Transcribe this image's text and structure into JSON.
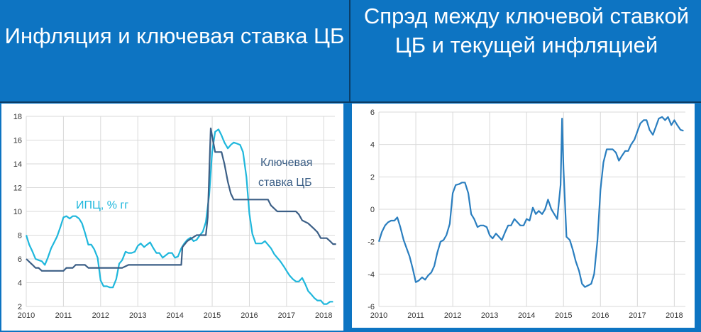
{
  "titles": {
    "left": "Инфляция и ключевая ставка ЦБ",
    "right": "Спрэд между ключевой ставкой ЦБ и текущей инфляцией"
  },
  "colors": {
    "background": "#0d74c2",
    "cpi": "#1fb7dc",
    "key_rate": "#3c5f86",
    "spread": "#2a7ebf"
  },
  "chart_data": [
    {
      "type": "line",
      "title": "Инфляция и ключевая ставка ЦБ",
      "xlim": [
        2010,
        2018.3
      ],
      "ylim": [
        2,
        18
      ],
      "x_ticks": [
        2010,
        2011,
        2012,
        2013,
        2014,
        2015,
        2016,
        2017,
        2018
      ],
      "y_ticks": [
        2,
        4,
        6,
        8,
        10,
        12,
        14,
        16,
        18
      ],
      "grid": true,
      "series": [
        {
          "name": "ИПЦ, % гг",
          "color": "#1fb7dc",
          "points": [
            [
              2010.0,
              8.0
            ],
            [
              2010.08,
              7.2
            ],
            [
              2010.17,
              6.6
            ],
            [
              2010.25,
              6.0
            ],
            [
              2010.33,
              5.9
            ],
            [
              2010.42,
              5.8
            ],
            [
              2010.5,
              5.5
            ],
            [
              2010.58,
              6.1
            ],
            [
              2010.67,
              6.9
            ],
            [
              2010.75,
              7.4
            ],
            [
              2010.83,
              7.9
            ],
            [
              2010.92,
              8.7
            ],
            [
              2011.0,
              9.5
            ],
            [
              2011.08,
              9.6
            ],
            [
              2011.17,
              9.4
            ],
            [
              2011.25,
              9.6
            ],
            [
              2011.33,
              9.6
            ],
            [
              2011.42,
              9.4
            ],
            [
              2011.5,
              9.0
            ],
            [
              2011.58,
              8.2
            ],
            [
              2011.67,
              7.2
            ],
            [
              2011.75,
              7.2
            ],
            [
              2011.83,
              6.8
            ],
            [
              2011.92,
              6.1
            ],
            [
              2012.0,
              4.2
            ],
            [
              2012.08,
              3.7
            ],
            [
              2012.17,
              3.7
            ],
            [
              2012.25,
              3.6
            ],
            [
              2012.33,
              3.6
            ],
            [
              2012.42,
              4.3
            ],
            [
              2012.5,
              5.6
            ],
            [
              2012.58,
              5.9
            ],
            [
              2012.67,
              6.6
            ],
            [
              2012.75,
              6.5
            ],
            [
              2012.83,
              6.5
            ],
            [
              2012.92,
              6.6
            ],
            [
              2013.0,
              7.1
            ],
            [
              2013.08,
              7.3
            ],
            [
              2013.17,
              7.0
            ],
            [
              2013.25,
              7.2
            ],
            [
              2013.33,
              7.4
            ],
            [
              2013.42,
              6.9
            ],
            [
              2013.5,
              6.5
            ],
            [
              2013.58,
              6.5
            ],
            [
              2013.67,
              6.1
            ],
            [
              2013.75,
              6.3
            ],
            [
              2013.83,
              6.5
            ],
            [
              2013.92,
              6.5
            ],
            [
              2014.0,
              6.1
            ],
            [
              2014.08,
              6.2
            ],
            [
              2014.17,
              6.9
            ],
            [
              2014.25,
              7.3
            ],
            [
              2014.33,
              7.6
            ],
            [
              2014.42,
              7.8
            ],
            [
              2014.5,
              7.5
            ],
            [
              2014.58,
              7.6
            ],
            [
              2014.67,
              8.0
            ],
            [
              2014.75,
              8.3
            ],
            [
              2014.83,
              9.1
            ],
            [
              2014.92,
              11.4
            ],
            [
              2015.0,
              15.0
            ],
            [
              2015.08,
              16.7
            ],
            [
              2015.17,
              16.9
            ],
            [
              2015.25,
              16.4
            ],
            [
              2015.33,
              15.8
            ],
            [
              2015.42,
              15.3
            ],
            [
              2015.5,
              15.6
            ],
            [
              2015.58,
              15.8
            ],
            [
              2015.67,
              15.7
            ],
            [
              2015.75,
              15.6
            ],
            [
              2015.83,
              15.0
            ],
            [
              2015.92,
              12.9
            ],
            [
              2016.0,
              9.8
            ],
            [
              2016.08,
              8.1
            ],
            [
              2016.17,
              7.3
            ],
            [
              2016.25,
              7.3
            ],
            [
              2016.33,
              7.3
            ],
            [
              2016.42,
              7.5
            ],
            [
              2016.5,
              7.2
            ],
            [
              2016.58,
              6.9
            ],
            [
              2016.67,
              6.4
            ],
            [
              2016.75,
              6.1
            ],
            [
              2016.83,
              5.8
            ],
            [
              2016.92,
              5.4
            ],
            [
              2017.0,
              5.0
            ],
            [
              2017.08,
              4.6
            ],
            [
              2017.17,
              4.3
            ],
            [
              2017.25,
              4.1
            ],
            [
              2017.33,
              4.1
            ],
            [
              2017.42,
              4.4
            ],
            [
              2017.5,
              3.9
            ],
            [
              2017.58,
              3.3
            ],
            [
              2017.67,
              3.0
            ],
            [
              2017.75,
              2.7
            ],
            [
              2017.83,
              2.5
            ],
            [
              2017.92,
              2.5
            ],
            [
              2018.0,
              2.2
            ],
            [
              2018.08,
              2.2
            ],
            [
              2018.17,
              2.4
            ],
            [
              2018.25,
              2.4
            ]
          ]
        },
        {
          "name": "Ключевая ставка ЦБ",
          "color": "#3c5f86",
          "points": [
            [
              2010.0,
              6.0
            ],
            [
              2010.17,
              5.5
            ],
            [
              2010.25,
              5.25
            ],
            [
              2010.33,
              5.25
            ],
            [
              2010.42,
              5.0
            ],
            [
              2011.0,
              5.0
            ],
            [
              2011.08,
              5.25
            ],
            [
              2011.25,
              5.25
            ],
            [
              2011.33,
              5.5
            ],
            [
              2011.58,
              5.5
            ],
            [
              2011.67,
              5.25
            ],
            [
              2012.0,
              5.25
            ],
            [
              2012.58,
              5.25
            ],
            [
              2012.75,
              5.5
            ],
            [
              2014.17,
              5.5
            ],
            [
              2014.2,
              7.0
            ],
            [
              2014.33,
              7.5
            ],
            [
              2014.58,
              8.0
            ],
            [
              2014.83,
              8.0
            ],
            [
              2014.88,
              9.5
            ],
            [
              2014.96,
              17.0
            ],
            [
              2015.08,
              15.0
            ],
            [
              2015.25,
              15.0
            ],
            [
              2015.33,
              14.0
            ],
            [
              2015.42,
              12.5
            ],
            [
              2015.5,
              11.5
            ],
            [
              2015.58,
              11.0
            ],
            [
              2016.5,
              11.0
            ],
            [
              2016.58,
              10.5
            ],
            [
              2016.75,
              10.0
            ],
            [
              2017.25,
              10.0
            ],
            [
              2017.33,
              9.75
            ],
            [
              2017.42,
              9.25
            ],
            [
              2017.58,
              9.0
            ],
            [
              2017.75,
              8.5
            ],
            [
              2017.83,
              8.25
            ],
            [
              2017.92,
              7.75
            ],
            [
              2018.08,
              7.75
            ],
            [
              2018.17,
              7.5
            ],
            [
              2018.25,
              7.25
            ],
            [
              2018.33,
              7.25
            ]
          ]
        }
      ],
      "annotations": [
        {
          "text": "ИПЦ, % гг",
          "series": "cpi"
        },
        {
          "text": "Ключевая",
          "series": "key_rate"
        },
        {
          "text": "ставка ЦБ",
          "series": "key_rate"
        }
      ]
    },
    {
      "type": "line",
      "title": "Спрэд между ключевой ставкой ЦБ и текущей инфляцией",
      "xlim": [
        2010,
        2018.3
      ],
      "ylim": [
        -6,
        6
      ],
      "x_ticks": [
        2010,
        2011,
        2012,
        2013,
        2014,
        2015,
        2016,
        2017,
        2018
      ],
      "y_ticks": [
        -6,
        -4,
        -2,
        0,
        2,
        4,
        6
      ],
      "grid": true,
      "series": [
        {
          "name": "",
          "color": "#2a7ebf",
          "points": [
            [
              2010.0,
              -2.0
            ],
            [
              2010.08,
              -1.4
            ],
            [
              2010.17,
              -1.0
            ],
            [
              2010.25,
              -0.8
            ],
            [
              2010.33,
              -0.7
            ],
            [
              2010.42,
              -0.7
            ],
            [
              2010.5,
              -0.5
            ],
            [
              2010.58,
              -1.1
            ],
            [
              2010.67,
              -1.9
            ],
            [
              2010.75,
              -2.4
            ],
            [
              2010.83,
              -2.9
            ],
            [
              2010.92,
              -3.7
            ],
            [
              2011.0,
              -4.5
            ],
            [
              2011.08,
              -4.4
            ],
            [
              2011.17,
              -4.2
            ],
            [
              2011.25,
              -4.35
            ],
            [
              2011.33,
              -4.1
            ],
            [
              2011.42,
              -3.9
            ],
            [
              2011.5,
              -3.5
            ],
            [
              2011.58,
              -2.7
            ],
            [
              2011.67,
              -2.0
            ],
            [
              2011.75,
              -1.9
            ],
            [
              2011.83,
              -1.6
            ],
            [
              2011.92,
              -0.9
            ],
            [
              2012.0,
              1.0
            ],
            [
              2012.08,
              1.5
            ],
            [
              2012.17,
              1.55
            ],
            [
              2012.25,
              1.65
            ],
            [
              2012.33,
              1.65
            ],
            [
              2012.42,
              1.0
            ],
            [
              2012.5,
              -0.3
            ],
            [
              2012.58,
              -0.6
            ],
            [
              2012.67,
              -1.1
            ],
            [
              2012.75,
              -1.0
            ],
            [
              2012.83,
              -1.0
            ],
            [
              2012.92,
              -1.1
            ],
            [
              2013.0,
              -1.6
            ],
            [
              2013.08,
              -1.8
            ],
            [
              2013.17,
              -1.5
            ],
            [
              2013.25,
              -1.7
            ],
            [
              2013.33,
              -1.9
            ],
            [
              2013.42,
              -1.4
            ],
            [
              2013.5,
              -1.0
            ],
            [
              2013.58,
              -1.0
            ],
            [
              2013.67,
              -0.6
            ],
            [
              2013.75,
              -0.8
            ],
            [
              2013.83,
              -1.0
            ],
            [
              2013.92,
              -1.0
            ],
            [
              2014.0,
              -0.6
            ],
            [
              2014.08,
              -0.7
            ],
            [
              2014.17,
              0.1
            ],
            [
              2014.25,
              -0.3
            ],
            [
              2014.33,
              -0.1
            ],
            [
              2014.42,
              -0.3
            ],
            [
              2014.5,
              0.0
            ],
            [
              2014.58,
              0.6
            ],
            [
              2014.67,
              0.0
            ],
            [
              2014.75,
              -0.3
            ],
            [
              2014.83,
              -0.6
            ],
            [
              2014.92,
              1.5
            ],
            [
              2014.96,
              5.6
            ],
            [
              2015.0,
              2.5
            ],
            [
              2015.08,
              -1.7
            ],
            [
              2015.17,
              -1.9
            ],
            [
              2015.25,
              -2.5
            ],
            [
              2015.33,
              -3.2
            ],
            [
              2015.42,
              -3.8
            ],
            [
              2015.5,
              -4.6
            ],
            [
              2015.58,
              -4.8
            ],
            [
              2015.67,
              -4.7
            ],
            [
              2015.75,
              -4.6
            ],
            [
              2015.83,
              -4.0
            ],
            [
              2015.92,
              -1.9
            ],
            [
              2016.0,
              1.2
            ],
            [
              2016.08,
              2.9
            ],
            [
              2016.17,
              3.7
            ],
            [
              2016.25,
              3.7
            ],
            [
              2016.33,
              3.7
            ],
            [
              2016.42,
              3.5
            ],
            [
              2016.5,
              3.0
            ],
            [
              2016.58,
              3.3
            ],
            [
              2016.67,
              3.6
            ],
            [
              2016.75,
              3.6
            ],
            [
              2016.83,
              4.0
            ],
            [
              2016.92,
              4.3
            ],
            [
              2017.0,
              4.8
            ],
            [
              2017.08,
              5.3
            ],
            [
              2017.17,
              5.5
            ],
            [
              2017.25,
              5.5
            ],
            [
              2017.33,
              4.9
            ],
            [
              2017.42,
              4.6
            ],
            [
              2017.5,
              5.1
            ],
            [
              2017.58,
              5.6
            ],
            [
              2017.67,
              5.7
            ],
            [
              2017.75,
              5.5
            ],
            [
              2017.83,
              5.7
            ],
            [
              2017.92,
              5.2
            ],
            [
              2018.0,
              5.5
            ],
            [
              2018.08,
              5.2
            ],
            [
              2018.17,
              4.9
            ],
            [
              2018.25,
              4.85
            ]
          ]
        }
      ]
    }
  ]
}
